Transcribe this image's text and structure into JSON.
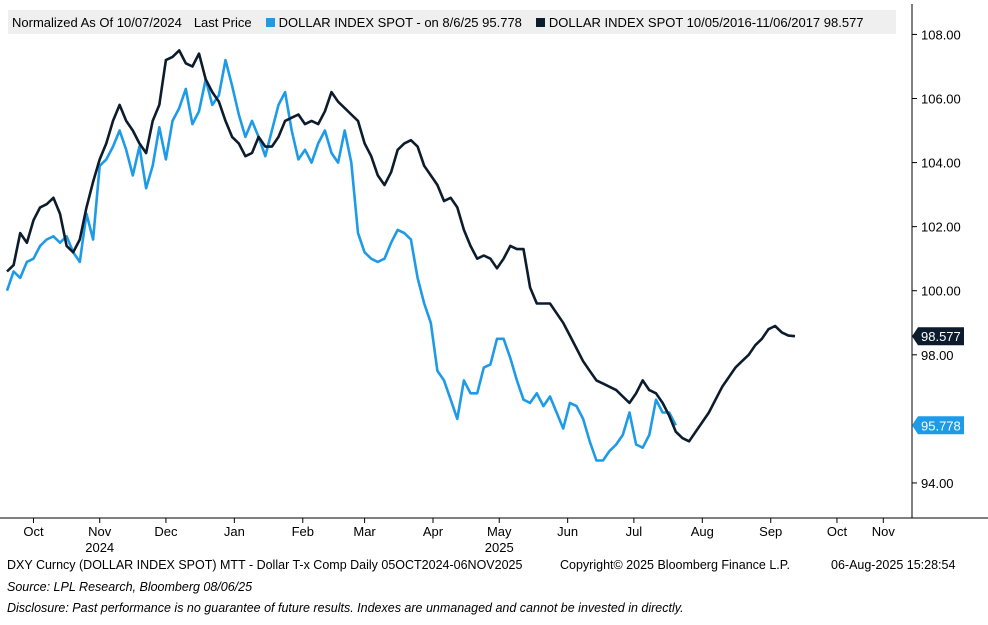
{
  "legend": {
    "normalized_label": "Normalized As Of 10/07/2024",
    "last_price_label": "Last Price",
    "series_a_label": "DOLLAR INDEX SPOT -   on 8/6/25 95.778",
    "series_b_label": "DOLLAR INDEX SPOT 10/05/2016-11/06/2017 98.577"
  },
  "footer": {
    "ticker_line": "DXY Curncy (DOLLAR INDEX SPOT) MTT - Dollar T-x Comp  Daily 05OCT2024-06NOV2025",
    "copyright": "Copyright© 2025 Bloomberg Finance L.P.",
    "timestamp": "06-Aug-2025 15:28:54",
    "source": "Source: LPL Research, Bloomberg 08/06/25",
    "disclosure": "Disclosure: Past performance is no guarantee of future results. Indexes are unmanaged and cannot be invested in directly."
  },
  "chart_data": {
    "type": "line",
    "y_ticks": [
      "108.00",
      "106.00",
      "104.00",
      "102.00",
      "100.00",
      "98.00",
      "94.00"
    ],
    "y_tick_values": [
      108,
      106,
      104,
      102,
      100,
      98,
      94
    ],
    "ylim": [
      93.0,
      108.7
    ],
    "x_tick_labels": [
      "Oct",
      "Nov",
      "Dec",
      "Jan",
      "Feb",
      "Mar",
      "Apr",
      "May",
      "Jun",
      "Jul",
      "Aug",
      "Sep",
      "Oct",
      "Nov"
    ],
    "x_tick_days": [
      12,
      42,
      72,
      103,
      134,
      162,
      193,
      223,
      254,
      284,
      315,
      346,
      376,
      397
    ],
    "x_year_labels": [
      {
        "text": "2024",
        "day": 42
      },
      {
        "text": "2025",
        "day": 223
      }
    ],
    "xlim": [
      0,
      410
    ],
    "grid": false,
    "legend_position": "top",
    "series": [
      {
        "name": "DOLLAR INDEX SPOT",
        "color": "#1e9be8",
        "last_value_label": "95.778",
        "points": [
          [
            0,
            100.0
          ],
          [
            3,
            100.6
          ],
          [
            6,
            100.4
          ],
          [
            9,
            100.9
          ],
          [
            12,
            101.0
          ],
          [
            15,
            101.4
          ],
          [
            18,
            101.6
          ],
          [
            21,
            101.7
          ],
          [
            24,
            101.5
          ],
          [
            27,
            101.7
          ],
          [
            30,
            101.2
          ],
          [
            33,
            100.9
          ],
          [
            36,
            102.4
          ],
          [
            39,
            101.6
          ],
          [
            42,
            103.9
          ],
          [
            45,
            104.1
          ],
          [
            48,
            104.5
          ],
          [
            51,
            105.0
          ],
          [
            54,
            104.4
          ],
          [
            57,
            103.6
          ],
          [
            60,
            104.5
          ],
          [
            63,
            103.2
          ],
          [
            66,
            103.9
          ],
          [
            69,
            105.1
          ],
          [
            72,
            104.1
          ],
          [
            75,
            105.3
          ],
          [
            78,
            105.7
          ],
          [
            81,
            106.3
          ],
          [
            84,
            105.2
          ],
          [
            87,
            105.6
          ],
          [
            90,
            106.6
          ],
          [
            93,
            105.8
          ],
          [
            96,
            106.1
          ],
          [
            99,
            107.2
          ],
          [
            102,
            106.4
          ],
          [
            105,
            105.5
          ],
          [
            108,
            104.8
          ],
          [
            111,
            105.3
          ],
          [
            114,
            104.8
          ],
          [
            117,
            104.2
          ],
          [
            120,
            105.0
          ],
          [
            123,
            105.8
          ],
          [
            126,
            106.2
          ],
          [
            129,
            105.0
          ],
          [
            132,
            104.1
          ],
          [
            135,
            104.4
          ],
          [
            138,
            104.0
          ],
          [
            141,
            104.6
          ],
          [
            144,
            105.0
          ],
          [
            147,
            104.3
          ],
          [
            150,
            104.0
          ],
          [
            153,
            105.0
          ],
          [
            156,
            104.0
          ],
          [
            159,
            101.8
          ],
          [
            162,
            101.2
          ],
          [
            165,
            101.0
          ],
          [
            168,
            100.9
          ],
          [
            171,
            101.0
          ],
          [
            174,
            101.5
          ],
          [
            177,
            101.9
          ],
          [
            180,
            101.8
          ],
          [
            183,
            101.6
          ],
          [
            186,
            100.4
          ],
          [
            189,
            99.6
          ],
          [
            192,
            99.0
          ],
          [
            195,
            97.5
          ],
          [
            198,
            97.2
          ],
          [
            201,
            96.6
          ],
          [
            204,
            96.0
          ],
          [
            207,
            97.2
          ],
          [
            210,
            96.8
          ],
          [
            213,
            96.8
          ],
          [
            216,
            97.6
          ],
          [
            219,
            97.7
          ],
          [
            222,
            98.5
          ],
          [
            225,
            98.5
          ],
          [
            228,
            97.9
          ],
          [
            231,
            97.2
          ],
          [
            234,
            96.6
          ],
          [
            237,
            96.5
          ],
          [
            240,
            96.8
          ],
          [
            243,
            96.4
          ],
          [
            246,
            96.7
          ],
          [
            249,
            96.2
          ],
          [
            252,
            95.7
          ],
          [
            255,
            96.5
          ],
          [
            258,
            96.4
          ],
          [
            261,
            96.0
          ],
          [
            264,
            95.3
          ],
          [
            267,
            94.7
          ],
          [
            270,
            94.7
          ],
          [
            273,
            95.0
          ],
          [
            276,
            95.2
          ],
          [
            279,
            95.5
          ],
          [
            282,
            96.2
          ],
          [
            285,
            95.2
          ],
          [
            288,
            95.1
          ],
          [
            291,
            95.5
          ],
          [
            294,
            96.6
          ],
          [
            297,
            96.2
          ],
          [
            300,
            96.2
          ],
          [
            303,
            95.8
          ]
        ]
      },
      {
        "name": "DOLLAR INDEX SPOT 10/05/2016-11/06/2017",
        "color": "#0c1c2c",
        "last_value_label": "98.577",
        "points": [
          [
            0,
            100.6
          ],
          [
            3,
            100.8
          ],
          [
            6,
            101.8
          ],
          [
            9,
            101.5
          ],
          [
            12,
            102.2
          ],
          [
            15,
            102.6
          ],
          [
            18,
            102.7
          ],
          [
            21,
            102.9
          ],
          [
            24,
            102.4
          ],
          [
            27,
            101.4
          ],
          [
            30,
            101.2
          ],
          [
            33,
            101.6
          ],
          [
            36,
            102.6
          ],
          [
            39,
            103.4
          ],
          [
            42,
            104.1
          ],
          [
            45,
            104.6
          ],
          [
            48,
            105.3
          ],
          [
            51,
            105.8
          ],
          [
            54,
            105.3
          ],
          [
            57,
            105.0
          ],
          [
            60,
            104.6
          ],
          [
            63,
            104.3
          ],
          [
            66,
            105.3
          ],
          [
            69,
            105.8
          ],
          [
            72,
            107.2
          ],
          [
            75,
            107.3
          ],
          [
            78,
            107.5
          ],
          [
            81,
            107.1
          ],
          [
            84,
            107.0
          ],
          [
            87,
            107.4
          ],
          [
            90,
            106.6
          ],
          [
            93,
            106.2
          ],
          [
            96,
            105.9
          ],
          [
            99,
            105.3
          ],
          [
            102,
            104.8
          ],
          [
            105,
            104.6
          ],
          [
            108,
            104.2
          ],
          [
            111,
            104.3
          ],
          [
            114,
            104.8
          ],
          [
            117,
            104.5
          ],
          [
            120,
            104.5
          ],
          [
            123,
            104.8
          ],
          [
            126,
            105.3
          ],
          [
            129,
            105.4
          ],
          [
            132,
            105.5
          ],
          [
            135,
            105.2
          ],
          [
            138,
            105.3
          ],
          [
            141,
            105.2
          ],
          [
            144,
            105.6
          ],
          [
            147,
            106.2
          ],
          [
            150,
            105.9
          ],
          [
            153,
            105.7
          ],
          [
            156,
            105.5
          ],
          [
            159,
            105.3
          ],
          [
            162,
            104.6
          ],
          [
            165,
            104.2
          ],
          [
            168,
            103.6
          ],
          [
            171,
            103.3
          ],
          [
            174,
            103.7
          ],
          [
            177,
            104.4
          ],
          [
            180,
            104.6
          ],
          [
            183,
            104.7
          ],
          [
            186,
            104.5
          ],
          [
            189,
            103.9
          ],
          [
            192,
            103.6
          ],
          [
            195,
            103.3
          ],
          [
            198,
            102.8
          ],
          [
            201,
            102.9
          ],
          [
            204,
            102.6
          ],
          [
            207,
            101.9
          ],
          [
            210,
            101.4
          ],
          [
            213,
            101.0
          ],
          [
            216,
            101.1
          ],
          [
            219,
            101.0
          ],
          [
            222,
            100.7
          ],
          [
            225,
            101.0
          ],
          [
            228,
            101.4
          ],
          [
            231,
            101.3
          ],
          [
            234,
            101.3
          ],
          [
            237,
            100.1
          ],
          [
            240,
            99.6
          ],
          [
            243,
            99.6
          ],
          [
            246,
            99.6
          ],
          [
            249,
            99.3
          ],
          [
            252,
            99.0
          ],
          [
            255,
            98.6
          ],
          [
            258,
            98.2
          ],
          [
            261,
            97.8
          ],
          [
            264,
            97.5
          ],
          [
            267,
            97.2
          ],
          [
            270,
            97.1
          ],
          [
            273,
            97.0
          ],
          [
            276,
            96.9
          ],
          [
            279,
            96.7
          ],
          [
            282,
            96.5
          ],
          [
            285,
            96.8
          ],
          [
            288,
            97.2
          ],
          [
            291,
            96.9
          ],
          [
            294,
            96.8
          ],
          [
            297,
            96.5
          ],
          [
            300,
            96.1
          ],
          [
            303,
            95.6
          ],
          [
            306,
            95.4
          ],
          [
            309,
            95.3
          ],
          [
            312,
            95.6
          ],
          [
            315,
            95.9
          ],
          [
            318,
            96.2
          ],
          [
            321,
            96.6
          ],
          [
            324,
            97.0
          ],
          [
            327,
            97.3
          ],
          [
            330,
            97.6
          ],
          [
            333,
            97.8
          ],
          [
            336,
            98.0
          ],
          [
            339,
            98.3
          ],
          [
            342,
            98.5
          ],
          [
            345,
            98.8
          ],
          [
            348,
            98.9
          ],
          [
            351,
            98.7
          ],
          [
            354,
            98.6
          ],
          [
            357,
            98.58
          ]
        ]
      }
    ]
  }
}
